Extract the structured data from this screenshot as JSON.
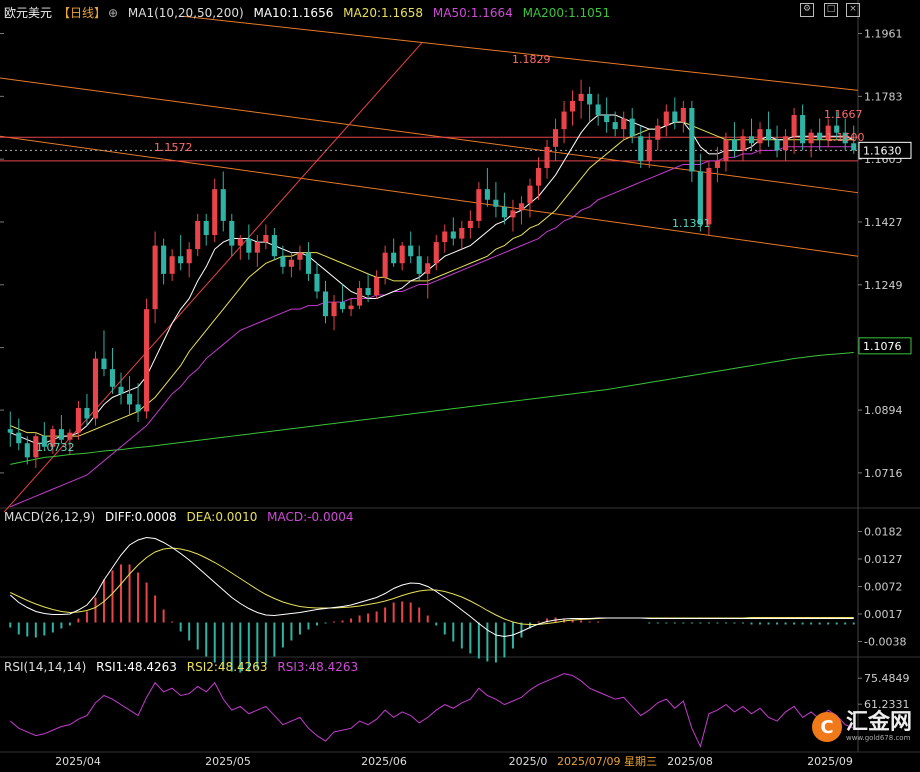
{
  "header": {
    "symbol": "欧元美元",
    "period": "【日线】",
    "ma_label": "MA1(10,20,50,200)",
    "ma10": "MA10:1.1656",
    "ma20": "MA20:1.1658",
    "ma50": "MA50:1.1664",
    "ma200": "MA200:1.1051",
    "macd_label": "MACD(26,12,9)",
    "macd_diff": "DIFF:0.0008",
    "macd_dea": "DEA:0.0010",
    "macd_val": "MACD:-0.0004",
    "rsi_label": "RSI(14,14,14)",
    "rsi1": "RSI1:48.4263",
    "rsi2": "RSI2:48.4263",
    "rsi3": "RSI3:48.4263"
  },
  "colors": {
    "up": "#e8444a",
    "down": "#2fb3a4",
    "ma10": "#ffffff",
    "ma20": "#e8e05a",
    "ma50": "#c43bd0",
    "ma200": "#3cc43c",
    "channel": "#e87a2a",
    "trend": "#e8444a"
  },
  "toolbar_icons": [
    "settings-icon",
    "restore-icon",
    "close-icon"
  ],
  "crosshair_date": "2025/07/09 星期三",
  "watermark": {
    "brand": "汇金网",
    "url": "www.gold678.com"
  },
  "chart_data": {
    "type": "candlestick",
    "price_axis": {
      "ylim": [
        1.0625,
        1.2005
      ],
      "ticks": [
        "1.1961",
        "1.1783",
        "1.1605",
        "1.1427",
        "1.1249",
        "1.1071",
        "1.0894",
        "1.0716"
      ],
      "current": "1.1630",
      "ma200_marker": "1.1076"
    },
    "x_ticks": [
      "2025/04",
      "2025/05",
      "2025/06",
      "2025/0",
      "2025/08",
      "2025/09"
    ],
    "annotations": [
      {
        "text": "1.1829",
        "x": "2025-07-01",
        "y": 1.1829,
        "color": "#ff6b6b"
      },
      {
        "text": "1.1572",
        "x": "2025-04-21",
        "y": 1.1572,
        "color": "#ff6b6b"
      },
      {
        "text": "1.1391",
        "x": "2025-08-01",
        "y": 1.1391,
        "color": "#5ad6c0"
      },
      {
        "text": "1.0732",
        "x": "2025-03-10",
        "y": 1.0732,
        "color": "#5ad6c0"
      },
      {
        "text": "1.1667",
        "y": 1.1667,
        "color": "#ff6b6b"
      },
      {
        "text": "1.1600",
        "y": 1.16,
        "color": "#ff6b6b"
      }
    ],
    "ohlc": [
      [
        1.084,
        1.089,
        1.079,
        1.083
      ],
      [
        1.083,
        1.087,
        1.078,
        1.08
      ],
      [
        1.08,
        1.082,
        1.074,
        1.076
      ],
      [
        1.076,
        1.083,
        1.073,
        1.082
      ],
      [
        1.082,
        1.086,
        1.078,
        1.079
      ],
      [
        1.079,
        1.085,
        1.077,
        1.084
      ],
      [
        1.084,
        1.088,
        1.08,
        1.081
      ],
      [
        1.081,
        1.084,
        1.077,
        1.083
      ],
      [
        1.083,
        1.092,
        1.081,
        1.09
      ],
      [
        1.09,
        1.094,
        1.085,
        1.087
      ],
      [
        1.087,
        1.106,
        1.085,
        1.104
      ],
      [
        1.104,
        1.112,
        1.099,
        1.101
      ],
      [
        1.101,
        1.107,
        1.094,
        1.096
      ],
      [
        1.096,
        1.1,
        1.091,
        1.094
      ],
      [
        1.094,
        1.099,
        1.088,
        1.091
      ],
      [
        1.091,
        1.097,
        1.086,
        1.089
      ],
      [
        1.089,
        1.121,
        1.087,
        1.118
      ],
      [
        1.118,
        1.14,
        1.114,
        1.136
      ],
      [
        1.136,
        1.138,
        1.125,
        1.128
      ],
      [
        1.128,
        1.135,
        1.126,
        1.133
      ],
      [
        1.133,
        1.139,
        1.129,
        1.131
      ],
      [
        1.131,
        1.137,
        1.127,
        1.135
      ],
      [
        1.135,
        1.145,
        1.133,
        1.143
      ],
      [
        1.143,
        1.145,
        1.136,
        1.139
      ],
      [
        1.139,
        1.155,
        1.137,
        1.152
      ],
      [
        1.152,
        1.157,
        1.14,
        1.143
      ],
      [
        1.143,
        1.145,
        1.133,
        1.136
      ],
      [
        1.136,
        1.139,
        1.132,
        1.138
      ],
      [
        1.138,
        1.142,
        1.132,
        1.134
      ],
      [
        1.134,
        1.139,
        1.13,
        1.137
      ],
      [
        1.137,
        1.142,
        1.135,
        1.139
      ],
      [
        1.139,
        1.141,
        1.132,
        1.133
      ],
      [
        1.133,
        1.136,
        1.128,
        1.13
      ],
      [
        1.13,
        1.134,
        1.127,
        1.132
      ],
      [
        1.132,
        1.136,
        1.129,
        1.134
      ],
      [
        1.134,
        1.137,
        1.126,
        1.128
      ],
      [
        1.128,
        1.131,
        1.121,
        1.123
      ],
      [
        1.123,
        1.126,
        1.114,
        1.116
      ],
      [
        1.116,
        1.122,
        1.112,
        1.12
      ],
      [
        1.12,
        1.125,
        1.117,
        1.118
      ],
      [
        1.118,
        1.121,
        1.116,
        1.119
      ],
      [
        1.119,
        1.126,
        1.118,
        1.124
      ],
      [
        1.124,
        1.128,
        1.12,
        1.122
      ],
      [
        1.122,
        1.129,
        1.121,
        1.127
      ],
      [
        1.127,
        1.136,
        1.125,
        1.134
      ],
      [
        1.134,
        1.138,
        1.13,
        1.131
      ],
      [
        1.131,
        1.137,
        1.129,
        1.136
      ],
      [
        1.136,
        1.14,
        1.131,
        1.133
      ],
      [
        1.133,
        1.136,
        1.126,
        1.128
      ],
      [
        1.128,
        1.133,
        1.121,
        1.131
      ],
      [
        1.131,
        1.139,
        1.129,
        1.137
      ],
      [
        1.137,
        1.142,
        1.134,
        1.14
      ],
      [
        1.14,
        1.144,
        1.136,
        1.138
      ],
      [
        1.138,
        1.143,
        1.135,
        1.141
      ],
      [
        1.141,
        1.146,
        1.138,
        1.143
      ],
      [
        1.143,
        1.154,
        1.141,
        1.152
      ],
      [
        1.152,
        1.158,
        1.147,
        1.149
      ],
      [
        1.149,
        1.154,
        1.144,
        1.147
      ],
      [
        1.147,
        1.151,
        1.142,
        1.144
      ],
      [
        1.144,
        1.149,
        1.14,
        1.146
      ],
      [
        1.146,
        1.15,
        1.142,
        1.148
      ],
      [
        1.148,
        1.155,
        1.144,
        1.153
      ],
      [
        1.153,
        1.161,
        1.149,
        1.158
      ],
      [
        1.158,
        1.166,
        1.155,
        1.164
      ],
      [
        1.164,
        1.172,
        1.16,
        1.169
      ],
      [
        1.169,
        1.177,
        1.165,
        1.174
      ],
      [
        1.174,
        1.18,
        1.17,
        1.177
      ],
      [
        1.177,
        1.183,
        1.172,
        1.179
      ],
      [
        1.179,
        1.181,
        1.171,
        1.176
      ],
      [
        1.176,
        1.179,
        1.17,
        1.173
      ],
      [
        1.173,
        1.178,
        1.168,
        1.171
      ],
      [
        1.171,
        1.174,
        1.167,
        1.169
      ],
      [
        1.169,
        1.174,
        1.166,
        1.172
      ],
      [
        1.172,
        1.175,
        1.165,
        1.167
      ],
      [
        1.167,
        1.17,
        1.158,
        1.16
      ],
      [
        1.16,
        1.168,
        1.158,
        1.166
      ],
      [
        1.166,
        1.172,
        1.163,
        1.17
      ],
      [
        1.17,
        1.176,
        1.167,
        1.174
      ],
      [
        1.174,
        1.178,
        1.169,
        1.171
      ],
      [
        1.171,
        1.177,
        1.168,
        1.175
      ],
      [
        1.175,
        1.177,
        1.154,
        1.157
      ],
      [
        1.157,
        1.162,
        1.14,
        1.142
      ],
      [
        1.142,
        1.16,
        1.139,
        1.158
      ],
      [
        1.158,
        1.164,
        1.154,
        1.16
      ],
      [
        1.16,
        1.168,
        1.157,
        1.166
      ],
      [
        1.166,
        1.171,
        1.161,
        1.163
      ],
      [
        1.163,
        1.169,
        1.16,
        1.167
      ],
      [
        1.167,
        1.172,
        1.163,
        1.165
      ],
      [
        1.165,
        1.171,
        1.162,
        1.169
      ],
      [
        1.169,
        1.174,
        1.164,
        1.166
      ],
      [
        1.166,
        1.17,
        1.161,
        1.163
      ],
      [
        1.163,
        1.169,
        1.16,
        1.167
      ],
      [
        1.167,
        1.175,
        1.162,
        1.173
      ],
      [
        1.173,
        1.176,
        1.163,
        1.165
      ],
      [
        1.165,
        1.169,
        1.161,
        1.168
      ],
      [
        1.168,
        1.172,
        1.163,
        1.166
      ],
      [
        1.166,
        1.172,
        1.164,
        1.17
      ],
      [
        1.17,
        1.174,
        1.166,
        1.168
      ],
      [
        1.168,
        1.172,
        1.163,
        1.165
      ],
      [
        1.165,
        1.17,
        1.162,
        1.163
      ]
    ],
    "ma10": [
      1.083,
      1.082,
      1.081,
      1.08,
      1.08,
      1.081,
      1.082,
      1.082,
      1.083,
      1.085,
      1.088,
      1.091,
      1.093,
      1.094,
      1.095,
      1.096,
      1.099,
      1.104,
      1.109,
      1.114,
      1.118,
      1.121,
      1.126,
      1.13,
      1.135,
      1.137,
      1.138,
      1.138,
      1.138,
      1.137,
      1.137,
      1.136,
      1.135,
      1.134,
      1.134,
      1.133,
      1.131,
      1.129,
      1.127,
      1.125,
      1.123,
      1.122,
      1.121,
      1.121,
      1.122,
      1.123,
      1.124,
      1.126,
      1.127,
      1.129,
      1.131,
      1.133,
      1.134,
      1.135,
      1.136,
      1.138,
      1.14,
      1.142,
      1.143,
      1.145,
      1.146,
      1.148,
      1.15,
      1.153,
      1.156,
      1.16,
      1.164,
      1.168,
      1.171,
      1.173,
      1.173,
      1.173,
      1.172,
      1.171,
      1.17,
      1.169,
      1.169,
      1.17,
      1.171,
      1.171,
      1.168,
      1.164,
      1.162,
      1.162,
      1.163,
      1.163,
      1.163,
      1.164,
      1.166,
      1.167,
      1.166,
      1.166,
      1.167,
      1.167,
      1.167,
      1.167,
      1.167,
      1.167,
      1.167,
      1.166
    ],
    "ma20": [
      1.085,
      1.084,
      1.083,
      1.083,
      1.082,
      1.082,
      1.082,
      1.082,
      1.082,
      1.083,
      1.084,
      1.085,
      1.086,
      1.087,
      1.088,
      1.089,
      1.091,
      1.093,
      1.096,
      1.099,
      1.102,
      1.106,
      1.109,
      1.112,
      1.115,
      1.118,
      1.121,
      1.124,
      1.127,
      1.129,
      1.131,
      1.132,
      1.133,
      1.133,
      1.134,
      1.134,
      1.134,
      1.133,
      1.132,
      1.131,
      1.13,
      1.129,
      1.128,
      1.127,
      1.127,
      1.126,
      1.126,
      1.126,
      1.126,
      1.126,
      1.127,
      1.128,
      1.129,
      1.13,
      1.131,
      1.132,
      1.133,
      1.135,
      1.136,
      1.138,
      1.139,
      1.141,
      1.142,
      1.144,
      1.146,
      1.149,
      1.152,
      1.155,
      1.158,
      1.16,
      1.162,
      1.164,
      1.166,
      1.167,
      1.168,
      1.169,
      1.169,
      1.17,
      1.171,
      1.171,
      1.17,
      1.169,
      1.168,
      1.167,
      1.166,
      1.166,
      1.166,
      1.166,
      1.166,
      1.166,
      1.166,
      1.166,
      1.166,
      1.166,
      1.166,
      1.166,
      1.166,
      1.166,
      1.166,
      1.166
    ],
    "ma50": [
      1.062,
      1.063,
      1.064,
      1.065,
      1.066,
      1.067,
      1.068,
      1.069,
      1.07,
      1.071,
      1.073,
      1.075,
      1.077,
      1.079,
      1.081,
      1.083,
      1.085,
      1.088,
      1.091,
      1.094,
      1.096,
      1.099,
      1.101,
      1.104,
      1.106,
      1.108,
      1.11,
      1.112,
      1.113,
      1.114,
      1.115,
      1.116,
      1.117,
      1.118,
      1.118,
      1.119,
      1.119,
      1.12,
      1.12,
      1.12,
      1.121,
      1.121,
      1.121,
      1.122,
      1.122,
      1.123,
      1.123,
      1.124,
      1.125,
      1.125,
      1.126,
      1.127,
      1.128,
      1.129,
      1.13,
      1.131,
      1.132,
      1.133,
      1.134,
      1.135,
      1.136,
      1.137,
      1.138,
      1.14,
      1.141,
      1.143,
      1.144,
      1.146,
      1.147,
      1.149,
      1.15,
      1.151,
      1.152,
      1.153,
      1.154,
      1.155,
      1.156,
      1.157,
      1.158,
      1.159,
      1.159,
      1.159,
      1.16,
      1.16,
      1.161,
      1.161,
      1.162,
      1.162,
      1.163,
      1.163,
      1.163,
      1.164,
      1.164,
      1.164,
      1.164,
      1.164,
      1.164,
      1.164,
      1.164,
      1.164
    ],
    "ma200": [
      1.074,
      1.0745,
      1.075,
      1.0755,
      1.076,
      1.0762,
      1.0765,
      1.0768,
      1.077,
      1.0772,
      1.0775,
      1.0778,
      1.078,
      1.0782,
      1.0785,
      1.0788,
      1.079,
      1.0793,
      1.0796,
      1.0799,
      1.0802,
      1.0805,
      1.0808,
      1.0811,
      1.0814,
      1.0817,
      1.082,
      1.0823,
      1.0826,
      1.0829,
      1.0832,
      1.0835,
      1.0838,
      1.0841,
      1.0844,
      1.0847,
      1.085,
      1.0853,
      1.0856,
      1.0859,
      1.0862,
      1.0865,
      1.0868,
      1.0871,
      1.0874,
      1.0877,
      1.088,
      1.0883,
      1.0886,
      1.0889,
      1.0892,
      1.0895,
      1.0898,
      1.0901,
      1.0904,
      1.0907,
      1.091,
      1.0913,
      1.0916,
      1.0919,
      1.0922,
      1.0925,
      1.0928,
      1.0931,
      1.0934,
      1.0937,
      1.094,
      1.0943,
      1.0946,
      1.0949,
      1.0952,
      1.0956,
      1.096,
      1.0964,
      1.0968,
      1.0972,
      1.0976,
      1.098,
      1.0984,
      1.0988,
      1.0992,
      1.0996,
      1.1,
      1.1004,
      1.1008,
      1.1012,
      1.1016,
      1.102,
      1.1024,
      1.1028,
      1.1032,
      1.1036,
      1.104,
      1.1043,
      1.1046,
      1.1049,
      1.1051,
      1.1053,
      1.1055,
      1.1057
    ],
    "macd": {
      "ticks": [
        "0.0182",
        "0.0127",
        "0.0072",
        "0.0017",
        "-0.0038"
      ],
      "ylim": [
        -0.0065,
        0.0205
      ],
      "diff": [
        0.0055,
        0.004,
        0.003,
        0.0022,
        0.0018,
        0.0016,
        0.0016,
        0.0017,
        0.0025,
        0.0035,
        0.0055,
        0.0085,
        0.011,
        0.0135,
        0.0155,
        0.0165,
        0.017,
        0.0168,
        0.016,
        0.015,
        0.0138,
        0.0125,
        0.011,
        0.0095,
        0.008,
        0.0065,
        0.005,
        0.0038,
        0.0028,
        0.002,
        0.0015,
        0.0014,
        0.0016,
        0.0018,
        0.002,
        0.0023,
        0.0026,
        0.0028,
        0.003,
        0.0032,
        0.0035,
        0.004,
        0.0045,
        0.005,
        0.0058,
        0.0068,
        0.0075,
        0.0079,
        0.0078,
        0.0072,
        0.0062,
        0.005,
        0.0038,
        0.0025,
        0.0012,
        -0.0002,
        -0.0015,
        -0.0025,
        -0.0028,
        -0.0025,
        -0.0018,
        -0.001,
        -0.0003,
        0.0002,
        0.0005,
        0.0007,
        0.0008,
        0.0008,
        0.0008,
        0.0009,
        0.0009,
        0.0009,
        0.0009,
        0.0009,
        0.0009,
        0.0008,
        0.0008,
        0.0008,
        0.0008,
        0.0008,
        0.0008,
        0.0008,
        0.0008,
        0.0008,
        0.0008,
        0.0008,
        0.0008,
        0.0008,
        0.0008,
        0.0008,
        0.0008,
        0.0008,
        0.0008,
        0.0008,
        0.0008,
        0.0008,
        0.0008,
        0.0008,
        0.0008,
        0.0008
      ],
      "dea": [
        0.006,
        0.0052,
        0.0044,
        0.0037,
        0.0031,
        0.0026,
        0.0022,
        0.002,
        0.0021,
        0.0024,
        0.003,
        0.0042,
        0.0058,
        0.0077,
        0.0097,
        0.0115,
        0.013,
        0.0141,
        0.0147,
        0.0149,
        0.0147,
        0.0143,
        0.0137,
        0.0129,
        0.012,
        0.011,
        0.0099,
        0.0088,
        0.0077,
        0.0066,
        0.0056,
        0.0048,
        0.0041,
        0.0036,
        0.0032,
        0.003,
        0.0029,
        0.0029,
        0.0029,
        0.003,
        0.0031,
        0.0033,
        0.0036,
        0.0039,
        0.0043,
        0.0048,
        0.0054,
        0.0059,
        0.0063,
        0.0065,
        0.0065,
        0.0062,
        0.0057,
        0.0051,
        0.0043,
        0.0034,
        0.0024,
        0.0015,
        0.0007,
        0.0001,
        -0.0003,
        -0.0004,
        -0.0004,
        -0.0002,
        0.0,
        0.0003,
        0.0005,
        0.0006,
        0.0007,
        0.0008,
        0.0009,
        0.0009,
        0.0009,
        0.0009,
        0.0009,
        0.0009,
        0.0009,
        0.0009,
        0.0009,
        0.0009,
        0.0009,
        0.0009,
        0.0009,
        0.0009,
        0.0009,
        0.0009,
        0.0009,
        0.001,
        0.001,
        0.001,
        0.001,
        0.001,
        0.001,
        0.001,
        0.001,
        0.001,
        0.001,
        0.001,
        0.001,
        0.001
      ]
    },
    "rsi": {
      "ticks": [
        "75.4849",
        "61.2331"
      ],
      "ylim": [
        35,
        80
      ],
      "values": [
        52,
        48,
        46,
        44,
        45,
        47,
        49,
        50,
        53,
        55,
        62,
        66,
        64,
        61,
        58,
        55,
        65,
        73,
        68,
        70,
        66,
        67,
        71,
        68,
        73,
        64,
        58,
        60,
        56,
        58,
        60,
        55,
        50,
        52,
        54,
        48,
        44,
        41,
        46,
        47,
        48,
        52,
        50,
        53,
        58,
        54,
        57,
        55,
        51,
        54,
        58,
        61,
        59,
        62,
        64,
        70,
        66,
        64,
        61,
        63,
        65,
        69,
        72,
        74,
        76,
        78,
        77,
        74,
        70,
        68,
        66,
        64,
        65,
        60,
        55,
        58,
        62,
        64,
        59,
        63,
        48,
        38,
        56,
        58,
        61,
        57,
        60,
        56,
        59,
        54,
        52,
        57,
        60,
        54,
        57,
        53,
        58,
        55,
        50,
        48
      ]
    }
  }
}
